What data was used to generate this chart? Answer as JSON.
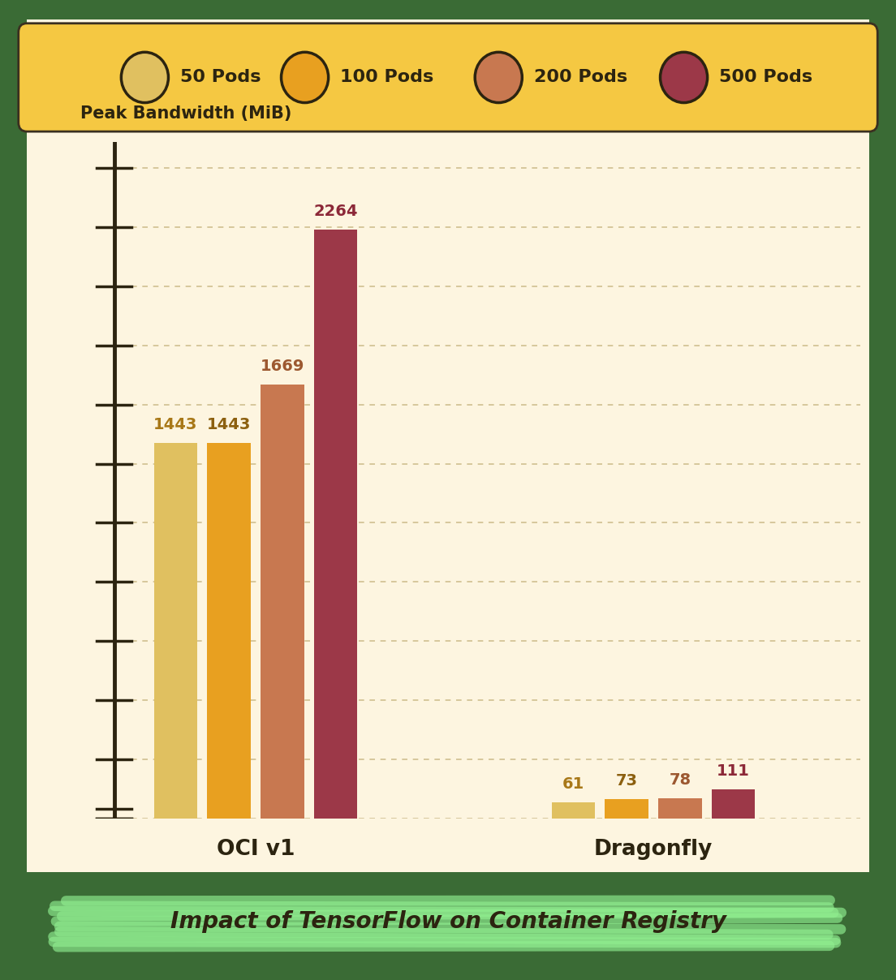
{
  "categories": [
    "OCI v1",
    "Dragonfly"
  ],
  "pods": [
    "50 Pods",
    "100 Pods",
    "200 Pods",
    "500 Pods"
  ],
  "values": {
    "OCI v1": [
      1443,
      1443,
      1669,
      2264
    ],
    "Dragonfly": [
      61,
      73,
      78,
      111
    ]
  },
  "bar_colors": [
    "#E0C060",
    "#E8A020",
    "#C87850",
    "#9C3848"
  ],
  "background_color": "#FDF5E0",
  "header_color": "#F5C842",
  "outer_background": "#3A6B35",
  "title_text": "Impact of TensorFlow on Container Registry",
  "ylabel": "Peak Bandwidth (MiB)",
  "ylim": [
    0,
    2600
  ],
  "font_color": "#2C2410",
  "value_colors": [
    "#A87818",
    "#8C6010",
    "#9C5830",
    "#8C2838"
  ],
  "axis_line_color": "#2C2410",
  "grid_color": "#D0C090",
  "highlight_color": "#90EE90",
  "legend_colors": [
    "#E0C060",
    "#E8A020",
    "#C87850",
    "#9C3848"
  ]
}
